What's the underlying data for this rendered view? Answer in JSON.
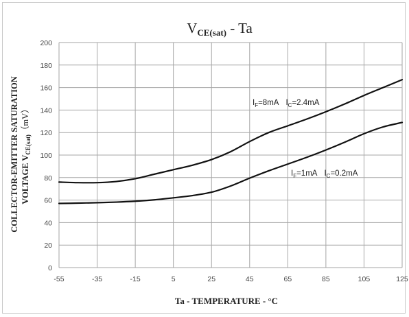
{
  "chart_data": {
    "type": "line",
    "title": {
      "main": "V",
      "sub": "CE(sat)",
      "suffix": " - Ta"
    },
    "xlabel": "Ta - TEMPERATURE - °C",
    "ylabel": {
      "line1": "COLLECTOR-EMITTER SATURATION",
      "line2_prefix": "VOLTAGE V",
      "line2_sub": "CE(sat)",
      "line2_unit": "（mV）"
    },
    "xlim": [
      -55,
      125
    ],
    "ylim": [
      0,
      200
    ],
    "x_ticks": [
      -55,
      -35,
      -15,
      5,
      25,
      45,
      65,
      85,
      105,
      125
    ],
    "y_ticks": [
      0,
      20,
      40,
      60,
      80,
      100,
      120,
      140,
      160,
      180,
      200
    ],
    "grid": true,
    "series": [
      {
        "label": {
          "a_main": "I",
          "a_sub": "F",
          "a_val": "=8mA",
          "b_main": "I",
          "b_sub": "C",
          "b_val": "=2.4mA"
        },
        "x": [
          -55,
          -45,
          -35,
          -25,
          -15,
          -5,
          5,
          15,
          25,
          35,
          45,
          55,
          65,
          75,
          85,
          95,
          105,
          115,
          125
        ],
        "y": [
          76,
          75.5,
          75.5,
          76.5,
          79,
          83,
          87,
          91,
          96,
          103,
          112,
          120,
          126,
          132,
          138.5,
          145.5,
          153,
          160,
          167
        ]
      },
      {
        "label": {
          "a_main": "I",
          "a_sub": "F",
          "a_val": "=1mA",
          "b_main": "I",
          "b_sub": "C",
          "b_val": "=0.2mA"
        },
        "x": [
          -55,
          -45,
          -35,
          -25,
          -15,
          -5,
          5,
          15,
          25,
          35,
          45,
          55,
          65,
          75,
          85,
          95,
          105,
          115,
          125
        ],
        "y": [
          57,
          57.3,
          57.7,
          58.2,
          59,
          60.2,
          62,
          64,
          67,
          72.5,
          79.5,
          86,
          92,
          98,
          104.5,
          111.5,
          119,
          125,
          129
        ]
      }
    ]
  }
}
